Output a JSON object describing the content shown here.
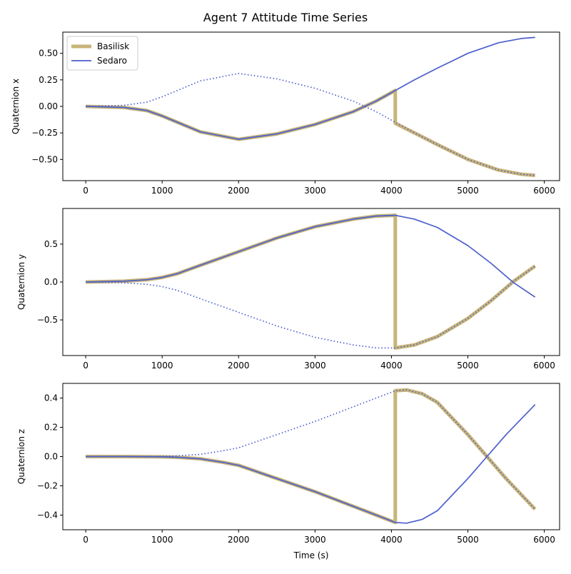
{
  "figure": {
    "title": "Agent 7 Attitude Time Series"
  },
  "colors": {
    "basilisk": "#c8b479",
    "sedaro": "#4b5fcb",
    "axis": "#000000",
    "background": "#ffffff"
  },
  "legend": {
    "placement": "top-left",
    "entries": [
      "Basilisk",
      "Sedaro"
    ]
  },
  "chart_data": [
    {
      "type": "line",
      "ylabel": "Quaternion x",
      "xlabel": "",
      "xlim": [
        -300,
        6200
      ],
      "ylim": [
        -0.7,
        0.7
      ],
      "xticks": [
        0,
        1000,
        2000,
        3000,
        4000,
        5000,
        6000
      ],
      "yticks": [
        -0.5,
        -0.25,
        0.0,
        0.25,
        0.5
      ],
      "ytick_labels": [
        "−0.50",
        "−0.25",
        "0.00",
        "0.25",
        "0.50"
      ],
      "grid": false,
      "series": [
        {
          "name": "Basilisk",
          "style": "thick-solid",
          "x": [
            0,
            500,
            800,
            1000,
            1200,
            1500,
            2000,
            2500,
            3000,
            3500,
            3800,
            4050,
            4050,
            4300,
            4600,
            5000,
            5400,
            5700,
            5880
          ],
          "y": [
            0,
            -0.01,
            -0.04,
            -0.09,
            -0.15,
            -0.24,
            -0.31,
            -0.26,
            -0.17,
            -0.05,
            0.05,
            0.15,
            -0.16,
            -0.25,
            -0.36,
            -0.5,
            -0.6,
            -0.64,
            -0.65
          ]
        },
        {
          "name": "Sedaro",
          "style": "solid",
          "x": [
            0,
            500,
            800,
            1000,
            1200,
            1500,
            2000,
            2500,
            3000,
            3500,
            3800,
            4050,
            4300,
            4600,
            5000,
            5400,
            5700,
            5880
          ],
          "y": [
            0,
            -0.01,
            -0.04,
            -0.09,
            -0.15,
            -0.24,
            -0.31,
            -0.26,
            -0.17,
            -0.05,
            0.05,
            0.15,
            0.25,
            0.36,
            0.5,
            0.6,
            0.64,
            0.65
          ]
        },
        {
          "name": "",
          "style": "dotted",
          "x": [
            0,
            500,
            800,
            1000,
            1200,
            1500,
            2000,
            2500,
            3000,
            3500,
            3800,
            4050,
            4300,
            4600,
            5000,
            5400,
            5700,
            5880
          ],
          "y": [
            0,
            0.01,
            0.04,
            0.09,
            0.15,
            0.24,
            0.31,
            0.26,
            0.17,
            0.05,
            -0.05,
            -0.15,
            -0.25,
            -0.36,
            -0.5,
            -0.6,
            -0.64,
            -0.65
          ]
        }
      ]
    },
    {
      "type": "line",
      "ylabel": "Quaternion y",
      "xlabel": "",
      "xlim": [
        -300,
        6200
      ],
      "ylim": [
        -0.97,
        0.97
      ],
      "xticks": [
        0,
        1000,
        2000,
        3000,
        4000,
        5000,
        6000
      ],
      "yticks": [
        -0.5,
        0.0,
        0.5
      ],
      "ytick_labels": [
        "−0.5",
        "0.0",
        "0.5"
      ],
      "grid": false,
      "series": [
        {
          "name": "Basilisk",
          "style": "thick-solid",
          "x": [
            0,
            500,
            800,
            1000,
            1200,
            1500,
            2000,
            2500,
            3000,
            3500,
            3800,
            4050,
            4050,
            4300,
            4600,
            5000,
            5300,
            5600,
            5880
          ],
          "y": [
            0,
            0.01,
            0.03,
            0.06,
            0.11,
            0.22,
            0.4,
            0.58,
            0.73,
            0.83,
            0.87,
            0.88,
            -0.87,
            -0.83,
            -0.72,
            -0.48,
            -0.25,
            0.01,
            0.21
          ]
        },
        {
          "name": "Sedaro",
          "style": "solid",
          "x": [
            0,
            500,
            800,
            1000,
            1200,
            1500,
            2000,
            2500,
            3000,
            3500,
            3800,
            4050,
            4300,
            4600,
            5000,
            5300,
            5600,
            5880
          ],
          "y": [
            0,
            0.01,
            0.03,
            0.06,
            0.11,
            0.22,
            0.4,
            0.58,
            0.73,
            0.83,
            0.87,
            0.88,
            0.83,
            0.72,
            0.48,
            0.25,
            -0.01,
            -0.2
          ]
        },
        {
          "name": "",
          "style": "dotted",
          "x": [
            0,
            500,
            800,
            1000,
            1200,
            1500,
            2000,
            2500,
            3000,
            3500,
            3800,
            4050,
            4300,
            4600,
            5000,
            5300,
            5600,
            5880
          ],
          "y": [
            0,
            -0.01,
            -0.03,
            -0.06,
            -0.11,
            -0.22,
            -0.4,
            -0.58,
            -0.73,
            -0.83,
            -0.87,
            -0.87,
            -0.83,
            -0.72,
            -0.48,
            -0.25,
            0.01,
            0.21
          ]
        }
      ]
    },
    {
      "type": "line",
      "ylabel": "Quaternion z",
      "xlabel": "Time (s)",
      "xlim": [
        -300,
        6200
      ],
      "ylim": [
        -0.5,
        0.5
      ],
      "xticks": [
        0,
        1000,
        2000,
        3000,
        4000,
        5000,
        6000
      ],
      "yticks": [
        -0.4,
        -0.2,
        0.0,
        0.2,
        0.4
      ],
      "ytick_labels": [
        "−0.4",
        "−0.2",
        "0.0",
        "0.2",
        "0.4"
      ],
      "grid": false,
      "series": [
        {
          "name": "Basilisk",
          "style": "thick-solid",
          "x": [
            0,
            500,
            1000,
            1200,
            1500,
            1800,
            2000,
            2500,
            3000,
            3500,
            3800,
            4050,
            4050,
            4200,
            4400,
            4600,
            5000,
            5250,
            5500,
            5880
          ],
          "y": [
            0,
            0,
            -0.002,
            -0.005,
            -0.015,
            -0.04,
            -0.06,
            -0.15,
            -0.24,
            -0.34,
            -0.4,
            -0.45,
            0.45,
            0.455,
            0.43,
            0.37,
            0.15,
            0.0,
            -0.15,
            -0.36
          ]
        },
        {
          "name": "Sedaro",
          "style": "solid",
          "x": [
            0,
            500,
            1000,
            1200,
            1500,
            1800,
            2000,
            2500,
            3000,
            3500,
            3800,
            4050,
            4200,
            4400,
            4600,
            5000,
            5250,
            5500,
            5880
          ],
          "y": [
            0,
            0,
            -0.002,
            -0.005,
            -0.015,
            -0.04,
            -0.06,
            -0.15,
            -0.24,
            -0.34,
            -0.4,
            -0.45,
            -0.455,
            -0.43,
            -0.37,
            -0.15,
            0.0,
            0.15,
            0.355
          ]
        },
        {
          "name": "",
          "style": "dotted",
          "x": [
            0,
            500,
            1000,
            1200,
            1500,
            1800,
            2000,
            2500,
            3000,
            3500,
            3800,
            4050,
            4200,
            4400,
            4600,
            5000,
            5250,
            5500,
            5880
          ],
          "y": [
            0,
            0,
            0.002,
            0.005,
            0.015,
            0.04,
            0.06,
            0.15,
            0.24,
            0.34,
            0.4,
            0.45,
            0.455,
            0.43,
            0.37,
            0.15,
            0.0,
            -0.15,
            -0.36
          ]
        }
      ]
    }
  ]
}
